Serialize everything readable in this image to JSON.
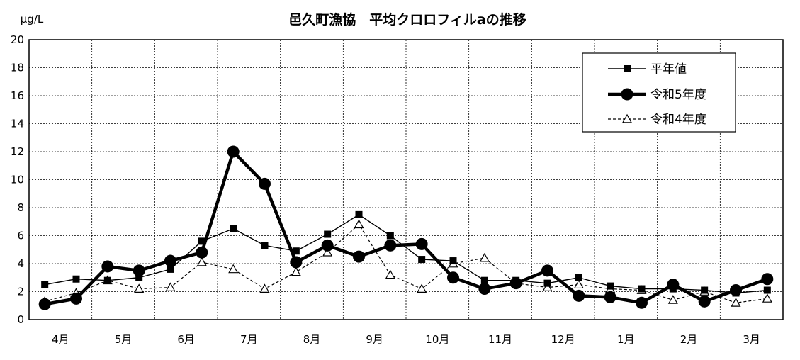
{
  "chart_data": {
    "type": "line",
    "title": "邑久町漁協　平均クロロフィルaの推移",
    "ylabel": "μg/L",
    "ylim": [
      0,
      20
    ],
    "yticks": [
      "0",
      "2",
      "4",
      "6",
      "8",
      "10",
      "12",
      "14",
      "16",
      "18",
      "20"
    ],
    "months": [
      "4月",
      "5月",
      "6月",
      "7月",
      "8月",
      "9月",
      "10月",
      "11月",
      "12月",
      "1月",
      "2月",
      "3月"
    ],
    "grid": true,
    "legend_position": "top-right",
    "series": [
      {
        "name": "平年値",
        "style": "thin-solid-square",
        "color": "#000000",
        "values": [
          2.5,
          2.9,
          2.8,
          3.0,
          3.6,
          5.6,
          6.5,
          5.3,
          4.9,
          6.1,
          7.5,
          6.0,
          4.3,
          4.2,
          2.8,
          2.8,
          2.6,
          3.0,
          2.4,
          2.2,
          2.2,
          2.1,
          1.9,
          2.1
        ]
      },
      {
        "name": "令和5年度",
        "style": "thick-solid-circle",
        "color": "#000000",
        "values": [
          1.1,
          1.5,
          3.8,
          3.5,
          4.2,
          4.8,
          12.0,
          9.7,
          4.1,
          5.3,
          4.5,
          5.3,
          5.4,
          3.0,
          2.2,
          2.6,
          3.5,
          1.7,
          1.6,
          1.2,
          2.5,
          1.3,
          2.1,
          2.9
        ]
      },
      {
        "name": "令和4年度",
        "style": "dashed-open-triangle",
        "color": "#000000",
        "values": [
          1.3,
          1.9,
          2.8,
          2.2,
          2.3,
          4.1,
          3.6,
          2.2,
          3.4,
          4.8,
          6.8,
          3.2,
          2.2,
          4.0,
          4.4,
          2.6,
          2.3,
          2.5,
          2.2,
          2.1,
          1.4,
          2.0,
          1.2,
          1.5
        ]
      }
    ]
  }
}
